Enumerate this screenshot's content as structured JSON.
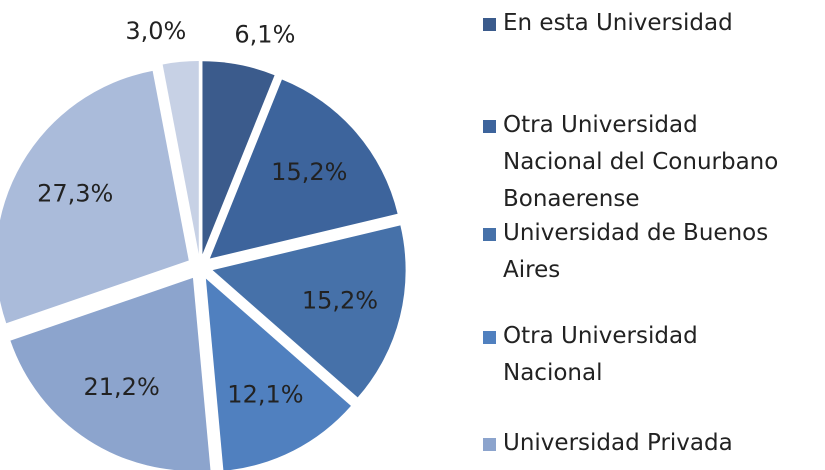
{
  "chart_data": {
    "type": "pie",
    "categories": [
      "En esta Universidad",
      "Otra Universidad Nacional del Conurbano Bonaerense",
      "Universidad de Buenos Aires",
      "Otra Universidad Nacional",
      "Universidad Privada",
      null,
      null
    ],
    "values": [
      6.1,
      15.2,
      15.2,
      12.1,
      21.2,
      27.3,
      3.0
    ],
    "value_labels": [
      "6,1%",
      "15,2%",
      "15,2%",
      "12,1%",
      "21,2%",
      "27,3%",
      "3,0%"
    ],
    "colors": [
      "#3b5b8c",
      "#3d649c",
      "#4671a9",
      "#5080bf",
      "#8ca4cd",
      "#aabbda",
      "#c7d1e5"
    ],
    "legend": "right"
  }
}
